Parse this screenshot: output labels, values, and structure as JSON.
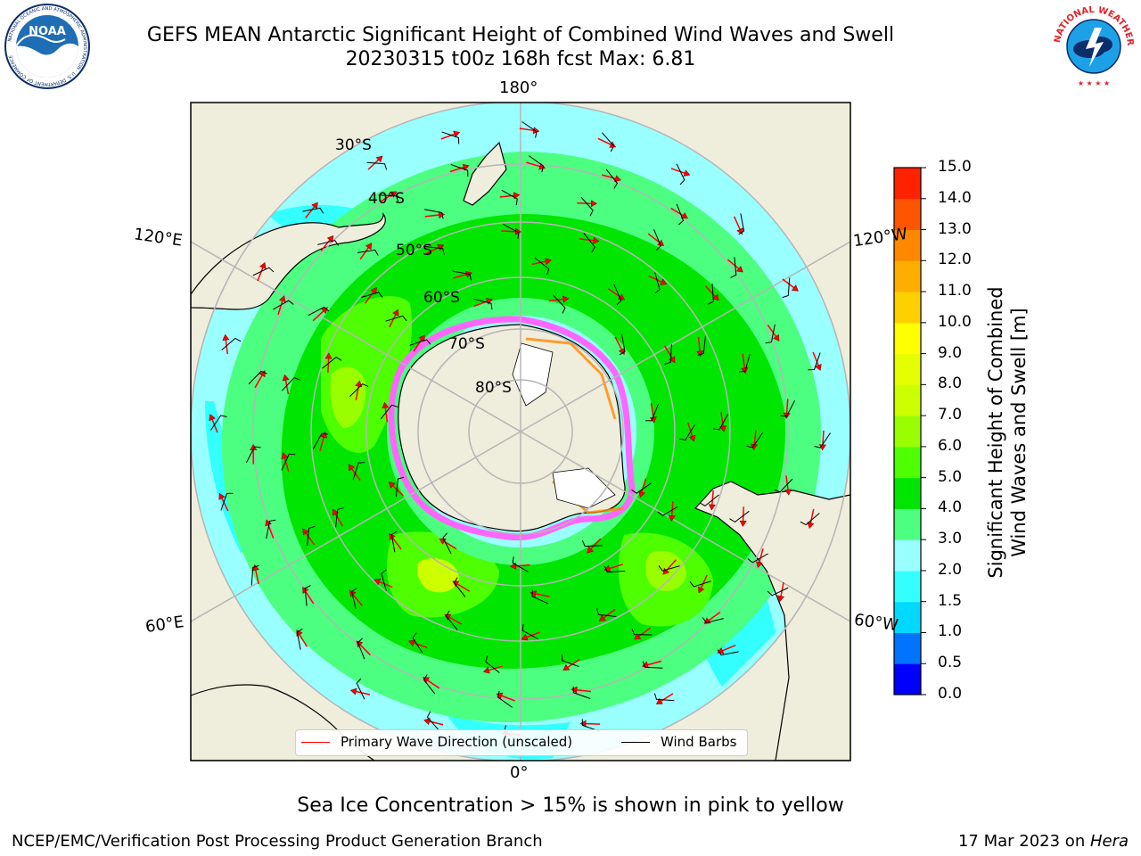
{
  "header": {
    "title_line1": "GEFS MEAN Antarctic Significant Height of Combined Wind Waves and Swell",
    "title_line2": "20230315 t00z 168h fcst   Max: 6.81"
  },
  "logos": {
    "left": {
      "name": "NOAA",
      "ring_text": "NATIONAL OCEANIC AND ATMOSPHERIC ADMINISTRATION · U.S. DEPARTMENT OF COMMERCE",
      "colors": {
        "ring": "#ffffff",
        "blue": "#1f6db5",
        "dark": "#0b2d6b"
      }
    },
    "right": {
      "name": "NATIONAL WEATHER SERVICE",
      "colors": {
        "red": "#e0252b",
        "blue": "#1da1e6"
      }
    }
  },
  "map": {
    "projection": "south-polar-stereographic",
    "longitude_labels": {
      "top": "180°",
      "bottom": "0°",
      "left_upper": "120°E",
      "left_lower": "60°E",
      "right_upper": "120°W",
      "right_lower": "60°W"
    },
    "latitude_labels": [
      "30°S",
      "40°S",
      "50°S",
      "60°S",
      "70°S",
      "80°S"
    ],
    "colors": {
      "land": "#efeddc",
      "ocean_low": "#99ffff",
      "coast": "#000000",
      "grid": "#b5b5b5",
      "ice_pink": "#ff66ff",
      "ice_orange": "#ff8800"
    }
  },
  "colorbar": {
    "title_line1": "Significant Height of Combined",
    "title_line2": "Wind Waves and Swell [m]",
    "ticks": [
      "0.0",
      "0.5",
      "1.0",
      "1.5",
      "2.0",
      "3.0",
      "4.0",
      "5.0",
      "6.0",
      "7.0",
      "8.0",
      "9.0",
      "10.0",
      "11.0",
      "12.0",
      "13.0",
      "14.0",
      "15.0"
    ],
    "colors": [
      "#0000ff",
      "#0073ff",
      "#00d9ff",
      "#33ffff",
      "#99ffff",
      "#4dff80",
      "#00e600",
      "#4dff00",
      "#99ff00",
      "#ccff00",
      "#e6ff00",
      "#ffff00",
      "#ffd000",
      "#ffae00",
      "#ff8800",
      "#ff5500",
      "#ff2200"
    ]
  },
  "legend": {
    "wave_direction": "Primary Wave Direction (unscaled)",
    "wind_barbs": "Wind Barbs",
    "colors": {
      "wave": "#ff0000",
      "wind": "#000000"
    }
  },
  "footer": {
    "ice_note": "Sea Ice Concentration > 15% is shown in pink to yellow",
    "producer": "NCEP/EMC/Verification Post Processing Product Generation Branch",
    "date_prefix": "17 Mar 2023 on ",
    "machine": "Hera"
  }
}
